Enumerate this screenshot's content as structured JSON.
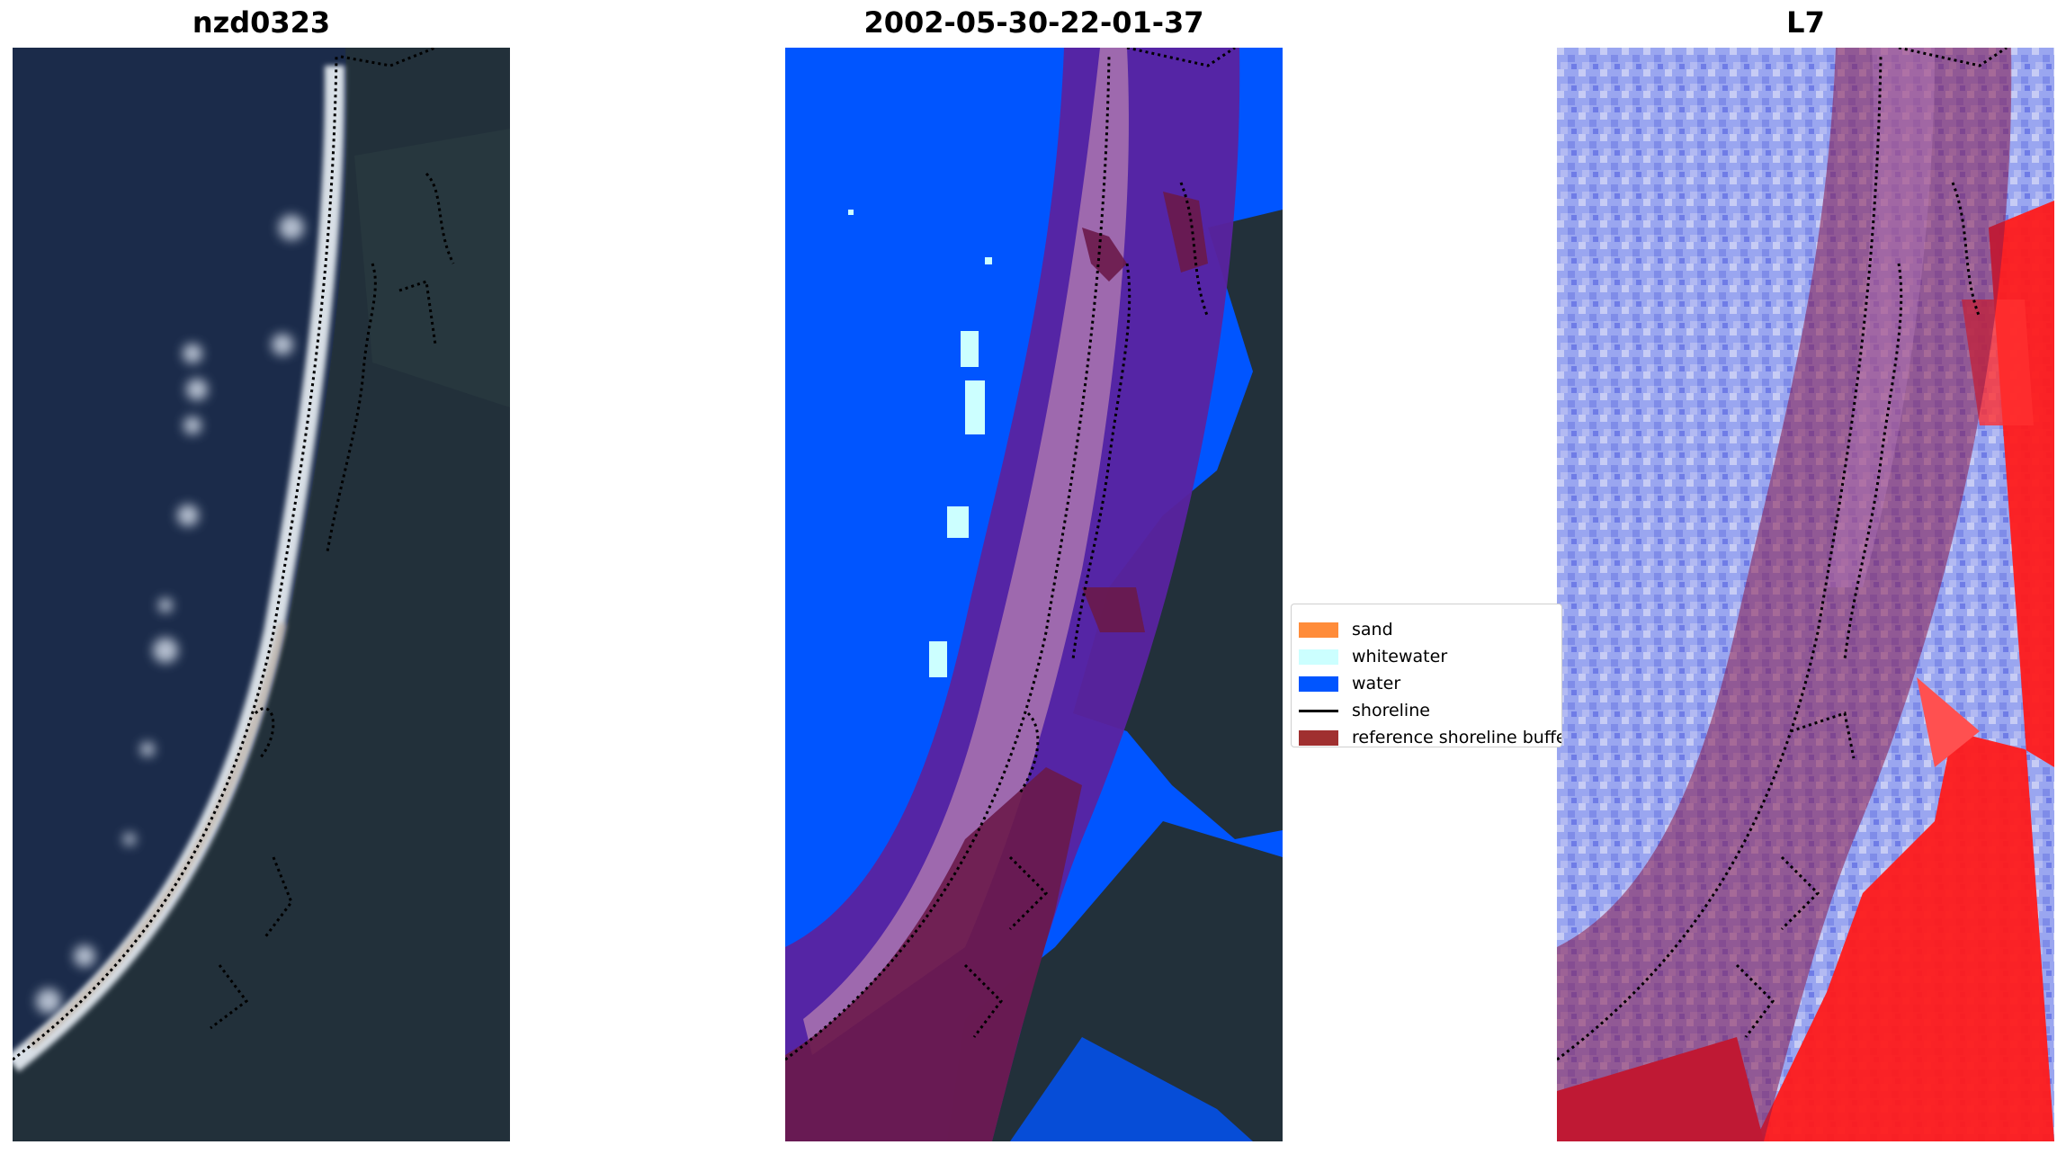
{
  "panels": [
    {
      "title": "nzd0323"
    },
    {
      "title": "2002-05-30-22-01-37"
    },
    {
      "title": "L7"
    }
  ],
  "legend": {
    "items": [
      {
        "label": "sand",
        "color": "#ff8c3a"
      },
      {
        "label": "whitewater",
        "color": "#ccffff"
      },
      {
        "label": "water",
        "color": "#0055ff"
      },
      {
        "label": "shoreline",
        "color": "#000000"
      },
      {
        "label": "reference shoreline buffer",
        "color": "#a03030"
      }
    ]
  },
  "colors": {
    "ocean_dark": "#1b2b4a",
    "land_dark": "#22303a",
    "buffer_overlay": "#8b1a4a",
    "classified_water": "#0055ff",
    "index_low": "#9aa6f0",
    "index_high": "#ff1a1a"
  }
}
